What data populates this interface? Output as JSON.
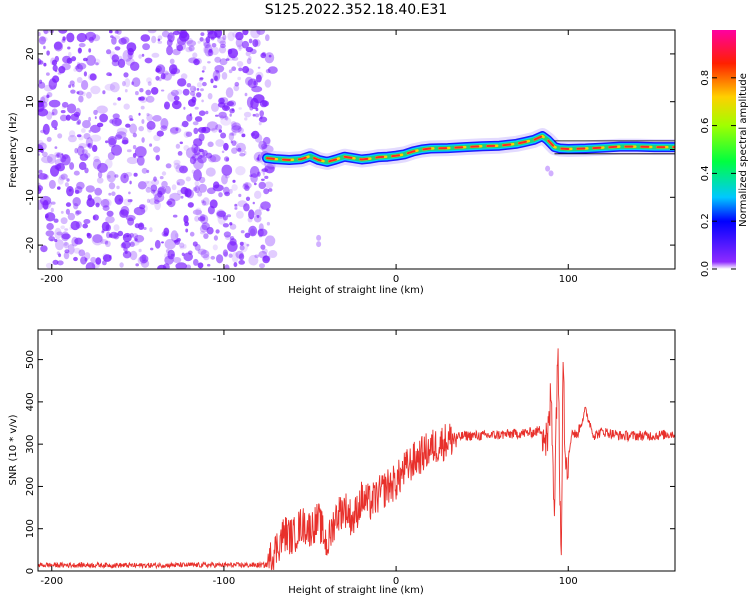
{
  "title": "S125.2022.352.18.40.E31",
  "colors": {
    "snr_line": "#e8302b",
    "speckle": "#7a1cff",
    "track_outer": "#1b1bff",
    "track_mid": "#22d07a",
    "track_core": "#ff2626",
    "axis": "#000000"
  },
  "chart_data": [
    {
      "type": "heatmap",
      "name": "spectrogram",
      "xlabel": "Height of straight line (km)",
      "ylabel": "Frequency (Hz)",
      "xlim": [
        -208,
        162
      ],
      "ylim": [
        -25,
        25
      ],
      "xticks": [
        -200,
        -100,
        0,
        100
      ],
      "yticks": [
        -20,
        -10,
        0,
        10,
        20
      ],
      "noise_region_x": [
        -208,
        -75
      ],
      "track": {
        "x": [
          -75,
          -70,
          -62,
          -55,
          -50,
          -45,
          -40,
          -35,
          -30,
          -25,
          -20,
          -15,
          -10,
          -5,
          0,
          5,
          10,
          15,
          20,
          30,
          40,
          50,
          60,
          70,
          75,
          80,
          85,
          88,
          92,
          95,
          100,
          110,
          120,
          130,
          140,
          150,
          162
        ],
        "freq": [
          -1.8,
          -2.0,
          -2.2,
          -2.0,
          -1.4,
          -2.2,
          -2.6,
          -2.1,
          -1.5,
          -1.8,
          -2.1,
          -1.9,
          -1.6,
          -1.5,
          -1.3,
          -1.0,
          -0.4,
          0.0,
          0.2,
          0.3,
          0.5,
          0.7,
          0.8,
          1.2,
          1.6,
          2.0,
          2.8,
          2.0,
          0.5,
          0.2,
          0.1,
          0.2,
          0.4,
          0.6,
          0.6,
          0.5,
          0.5
        ]
      },
      "colorbar": {
        "label": "Normalized spectral amplitude",
        "range": [
          0.0,
          1.0
        ],
        "ticks": [
          "0.0",
          "0.2",
          "0.4",
          "0.6",
          "0.8"
        ]
      }
    },
    {
      "type": "line",
      "name": "snr",
      "xlabel": "Height of straight line (km)",
      "ylabel": "SNR (10 * v/v)",
      "xlim": [
        -208,
        162
      ],
      "ylim": [
        0,
        570
      ],
      "xticks": [
        -200,
        -100,
        0,
        100
      ],
      "yticks": [
        0,
        100,
        200,
        300,
        400,
        500
      ],
      "series": [
        {
          "x": [
            -208,
            -190,
            -170,
            -150,
            -130,
            -110,
            -90,
            -75,
            -70,
            -65,
            -60,
            -55,
            -50,
            -45,
            -40,
            -35,
            -30,
            -25,
            -20,
            -15,
            -10,
            -5,
            0,
            5,
            10,
            15,
            20,
            25,
            30,
            40,
            50,
            60,
            70,
            80,
            85,
            88,
            90,
            92,
            94,
            95,
            96,
            97,
            98,
            100,
            102,
            105,
            110,
            115,
            120,
            130,
            140,
            150,
            162
          ],
          "y": [
            14,
            14,
            14,
            13,
            14,
            14,
            14,
            14,
            50,
            90,
            80,
            110,
            100,
            120,
            60,
            130,
            150,
            120,
            170,
            160,
            180,
            200,
            210,
            240,
            260,
            275,
            290,
            300,
            310,
            320,
            320,
            322,
            325,
            328,
            335,
            300,
            420,
            150,
            570,
            200,
            80,
            550,
            300,
            260,
            330,
            320,
            380,
            320,
            330,
            320,
            320,
            320,
            325
          ]
        }
      ]
    }
  ]
}
